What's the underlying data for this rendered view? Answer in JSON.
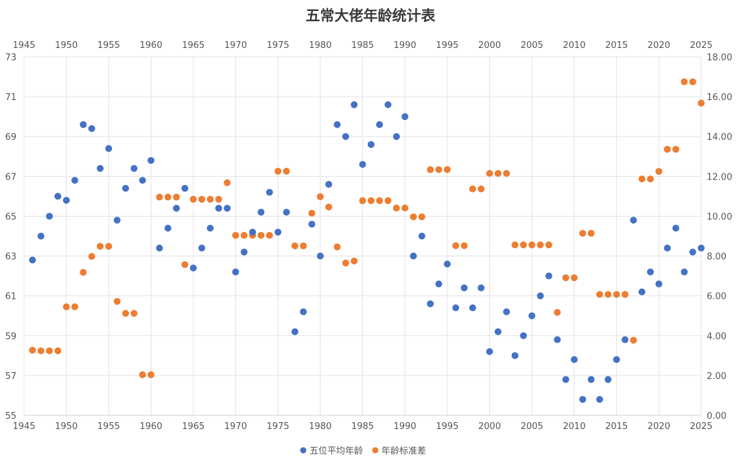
{
  "chart_data": {
    "type": "scatter",
    "title": "五常大佬年龄统计表",
    "x_range": [
      1945,
      2025
    ],
    "x_ticks": [
      "1945",
      "1950",
      "1955",
      "1960",
      "1965",
      "1970",
      "1975",
      "1980",
      "1985",
      "1990",
      "1995",
      "2000",
      "2005",
      "2010",
      "2015",
      "2020",
      "2025"
    ],
    "y_left_range": [
      55,
      73
    ],
    "y_left_ticks": [
      "55",
      "57",
      "59",
      "61",
      "63",
      "65",
      "67",
      "69",
      "71",
      "73"
    ],
    "y_right_range": [
      0,
      18
    ],
    "y_right_ticks": [
      "0.00",
      "2.00",
      "4.00",
      "6.00",
      "8.00",
      "10.00",
      "12.00",
      "14.00",
      "16.00",
      "18.00"
    ],
    "grid": true,
    "legend_position": "bottom",
    "series": [
      {
        "name": "五位平均年龄",
        "color": "#4472c4",
        "axis": "left",
        "x": [
          1946,
          1947,
          1948,
          1949,
          1950,
          1951,
          1952,
          1953,
          1954,
          1955,
          1956,
          1957,
          1958,
          1959,
          1960,
          1961,
          1962,
          1963,
          1964,
          1965,
          1966,
          1967,
          1968,
          1969,
          1970,
          1971,
          1972,
          1973,
          1974,
          1975,
          1976,
          1977,
          1978,
          1979,
          1980,
          1981,
          1982,
          1983,
          1984,
          1985,
          1986,
          1987,
          1988,
          1989,
          1990,
          1991,
          1992,
          1993,
          1994,
          1995,
          1996,
          1997,
          1998,
          1999,
          2000,
          2001,
          2002,
          2003,
          2004,
          2005,
          2006,
          2007,
          2008,
          2009,
          2010,
          2011,
          2012,
          2013,
          2014,
          2015,
          2016,
          2017,
          2018,
          2019,
          2020,
          2021,
          2022,
          2023,
          2024,
          2025
        ],
        "values": [
          62.8,
          64.0,
          65.0,
          66.0,
          65.8,
          66.8,
          69.6,
          69.4,
          67.4,
          68.4,
          64.8,
          66.4,
          67.4,
          66.8,
          67.8,
          63.4,
          64.4,
          65.4,
          66.4,
          62.4,
          63.4,
          64.4,
          65.4,
          65.4,
          62.2,
          63.2,
          64.2,
          65.2,
          66.2,
          64.2,
          65.2,
          59.2,
          60.2,
          64.6,
          63.0,
          66.6,
          69.6,
          69.0,
          70.6,
          67.6,
          68.6,
          69.6,
          70.6,
          69.0,
          70.0,
          63.0,
          64.0,
          60.6,
          61.6,
          62.6,
          60.4,
          61.4,
          60.4,
          61.4,
          58.2,
          59.2,
          60.2,
          58.0,
          59.0,
          60.0,
          61.0,
          62.0,
          58.8,
          56.8,
          57.8,
          55.8,
          56.8,
          55.8,
          56.8,
          57.8,
          58.8,
          64.8,
          61.2,
          62.2,
          61.6,
          63.4,
          64.4,
          62.2,
          63.2,
          63.4
        ]
      },
      {
        "name": "年龄标准差",
        "color": "#ed7d31",
        "axis": "right",
        "x": [
          1946,
          1947,
          1948,
          1949,
          1950,
          1951,
          1952,
          1953,
          1954,
          1955,
          1956,
          1957,
          1958,
          1959,
          1960,
          1961,
          1962,
          1963,
          1964,
          1965,
          1966,
          1967,
          1968,
          1969,
          1970,
          1971,
          1972,
          1973,
          1974,
          1975,
          1976,
          1977,
          1978,
          1979,
          1980,
          1981,
          1982,
          1983,
          1984,
          1985,
          1986,
          1987,
          1988,
          1989,
          1990,
          1991,
          1992,
          1993,
          1994,
          1995,
          1996,
          1997,
          1998,
          1999,
          2000,
          2001,
          2002,
          2003,
          2004,
          2005,
          2006,
          2007,
          2008,
          2009,
          2010,
          2011,
          2012,
          2013,
          2014,
          2015,
          2016,
          2017,
          2018,
          2019,
          2020,
          2021,
          2022,
          2023,
          2024,
          2025
        ],
        "values": [
          3.27,
          3.24,
          3.24,
          3.24,
          5.45,
          5.45,
          7.18,
          7.98,
          8.49,
          8.49,
          5.72,
          5.12,
          5.12,
          2.04,
          2.04,
          10.96,
          10.96,
          10.96,
          7.57,
          10.85,
          10.85,
          10.85,
          10.85,
          11.68,
          9.04,
          9.04,
          9.04,
          9.04,
          9.04,
          12.26,
          12.26,
          8.51,
          8.51,
          10.15,
          10.98,
          10.46,
          8.46,
          7.65,
          7.75,
          10.78,
          10.78,
          10.78,
          10.78,
          10.41,
          10.41,
          9.97,
          9.97,
          12.34,
          12.34,
          12.34,
          8.52,
          8.52,
          11.37,
          11.37,
          12.15,
          12.15,
          12.15,
          8.56,
          8.56,
          8.56,
          8.56,
          8.56,
          5.17,
          6.91,
          6.91,
          9.14,
          9.14,
          6.07,
          6.07,
          6.07,
          6.07,
          3.77,
          11.87,
          11.87,
          12.25,
          13.36,
          13.36,
          16.75,
          16.75,
          15.68
        ]
      }
    ]
  }
}
